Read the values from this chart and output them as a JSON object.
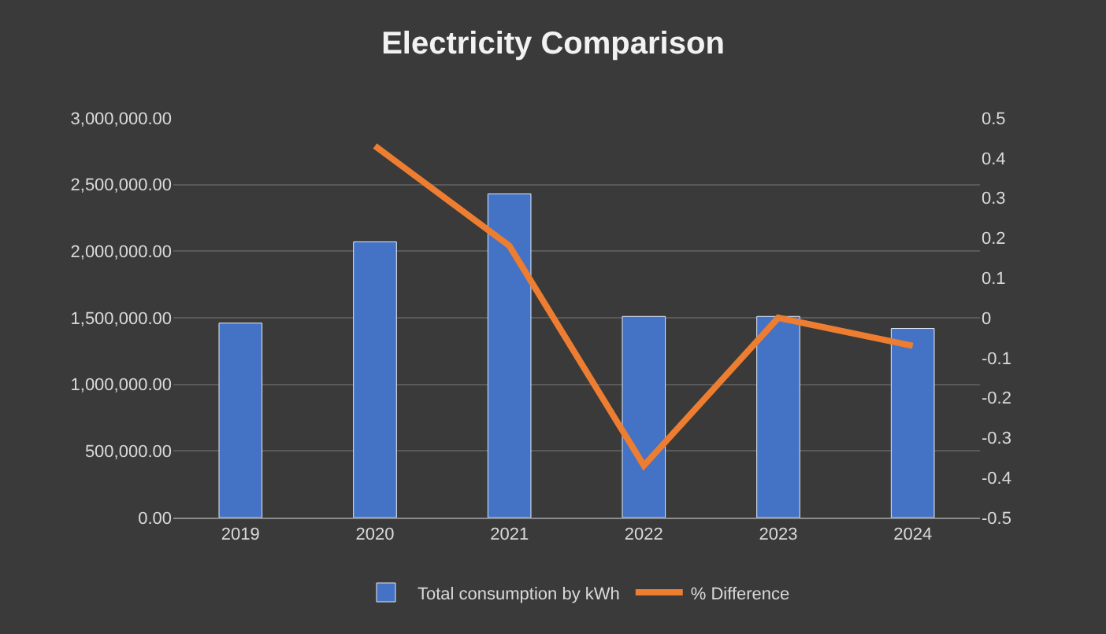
{
  "chart_data": {
    "type": "bar",
    "title": "Electricity Comparison",
    "categories": [
      "2019",
      "2020",
      "2021",
      "2022",
      "2023",
      "2024"
    ],
    "series": [
      {
        "name": "Total consumption by kWh",
        "color": "#4472c4",
        "values": [
          1460000,
          2070000,
          2430000,
          1510000,
          1510000,
          1420000
        ]
      },
      {
        "name": "% Difference",
        "type": "line",
        "axis": "y2",
        "color": "#ed7d31",
        "values": [
          null,
          0.43,
          0.18,
          -0.37,
          0.0,
          -0.07
        ]
      }
    ],
    "ylim": [
      0,
      3000000
    ],
    "yticks": [
      {
        "value": 0,
        "label": "0.00"
      },
      {
        "value": 500000,
        "label": "500,000.00"
      },
      {
        "value": 1000000,
        "label": "1,000,000.00"
      },
      {
        "value": 1500000,
        "label": "1,500,000.00"
      },
      {
        "value": 2000000,
        "label": "2,000,000.00"
      },
      {
        "value": 2500000,
        "label": "2,500,000.00"
      },
      {
        "value": 3000000,
        "label": "3,000,000.00"
      }
    ],
    "y2lim": [
      -0.5,
      0.5
    ],
    "y2ticks": [
      -0.5,
      -0.4,
      -0.3,
      -0.2,
      -0.1,
      0,
      0.1,
      0.2,
      0.3,
      0.4,
      0.5
    ],
    "grid": "y",
    "legend": "bottom",
    "marker": "none"
  }
}
